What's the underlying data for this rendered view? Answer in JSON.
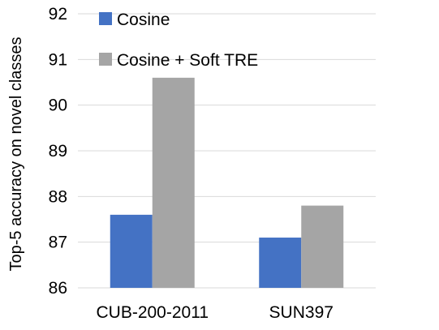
{
  "chart_data": {
    "type": "bar",
    "title": "",
    "xlabel": "",
    "ylabel": "Top-5 accuracy on novel classes",
    "categories": [
      "CUB-200-2011",
      "SUN397"
    ],
    "series": [
      {
        "name": "Cosine",
        "values": [
          87.6,
          87.1
        ],
        "color": "#4472c4"
      },
      {
        "name": "Cosine + Soft TRE",
        "values": [
          90.6,
          87.8
        ],
        "color": "#a5a5a5"
      }
    ],
    "ylim": [
      86,
      92
    ],
    "yticks": [
      "86",
      "87",
      "88",
      "89",
      "90",
      "91",
      "92"
    ],
    "grid": true,
    "gridColor": "#d9d9d9",
    "legend": "top-left inside"
  }
}
